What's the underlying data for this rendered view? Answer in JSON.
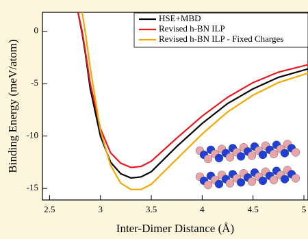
{
  "chart_data": {
    "type": "line",
    "x_label": "Inter-Dimer Distance (Å)",
    "y_label": "Binding Energy (meV/atom)",
    "x": [
      2.78,
      2.82,
      2.85,
      2.9,
      3.0,
      3.1,
      3.2,
      3.3,
      3.4,
      3.5,
      3.75,
      4.0,
      4.25,
      4.5,
      4.75,
      5.04
    ],
    "series": [
      {
        "name": "HSE+MBD",
        "color": "#000000",
        "values": [
          1.8,
          -0.2,
          -2,
          -5.5,
          -10,
          -12.5,
          -13.6,
          -14.0,
          -13.9,
          -13.4,
          -11.0,
          -8.8,
          -6.9,
          -5.5,
          -4.4,
          -3.6
        ]
      },
      {
        "name": "Revised h-BN ILP",
        "color": "#e8191e",
        "values": [
          1.8,
          0,
          -1.8,
          -5,
          -9.3,
          -11.6,
          -12.6,
          -13.0,
          -12.9,
          -12.4,
          -10.2,
          -8.1,
          -6.3,
          -4.9,
          -3.9,
          -3.2
        ]
      },
      {
        "name": "Revised h-BN ILP - Fixed Charges",
        "color": "#f5a800",
        "values": [
          null,
          1.8,
          0,
          -3.5,
          -9.5,
          -12.8,
          -14.5,
          -15.1,
          -15.1,
          -14.6,
          -12.2,
          -9.8,
          -7.7,
          -6.1,
          -4.9,
          -4.0
        ]
      }
    ],
    "xlim": [
      2.43,
      5.04
    ],
    "ylim": [
      -16.1,
      1.8
    ],
    "xticks": [
      2.5,
      3,
      3.5,
      4,
      4.5,
      5
    ],
    "yticks": [
      0,
      -5,
      -10,
      -15
    ],
    "legend": "upper right"
  }
}
